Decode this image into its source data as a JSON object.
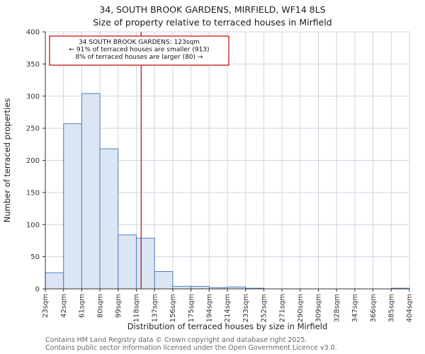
{
  "title": {
    "line1": "34, SOUTH BROOK GARDENS, MIRFIELD, WF14 8LS",
    "line2": "Size of property relative to terraced houses in Mirfield"
  },
  "chart_data": {
    "type": "bar",
    "title": "34, SOUTH BROOK GARDENS, MIRFIELD, WF14 8LS",
    "subtitle": "Size of property relative to terraced houses in Mirfield",
    "xlabel": "Distribution of terraced houses by size in Mirfield",
    "ylabel": "Number of terraced properties",
    "bin_edges_sqm": [
      23,
      42,
      61,
      80,
      99,
      118,
      137,
      156,
      175,
      194,
      214,
      233,
      252,
      271,
      290,
      309,
      328,
      347,
      366,
      385,
      404
    ],
    "x_tick_labels": [
      "23sqm",
      "42sqm",
      "61sqm",
      "80sqm",
      "99sqm",
      "118sqm",
      "137sqm",
      "156sqm",
      "175sqm",
      "194sqm",
      "214sqm",
      "233sqm",
      "252sqm",
      "271sqm",
      "290sqm",
      "309sqm",
      "328sqm",
      "347sqm",
      "366sqm",
      "385sqm",
      "404sqm"
    ],
    "values": [
      25,
      257,
      304,
      218,
      84,
      79,
      27,
      4,
      4,
      2,
      3,
      1,
      0,
      0,
      0,
      0,
      0,
      0,
      0,
      1
    ],
    "ylim": [
      0,
      400
    ],
    "y_ticks": [
      0,
      50,
      100,
      150,
      200,
      250,
      300,
      350,
      400
    ],
    "grid": true,
    "legend": "none",
    "bar_fill": "#dbe5f3",
    "bar_stroke": "#4f81bd",
    "grid_color": "#ccd5e4",
    "marker": {
      "value_sqm": 123,
      "color": "#cc0000",
      "label_lines": [
        "34 SOUTH BROOK GARDENS: 123sqm",
        "← 91% of terraced houses are smaller (913)",
        "8% of terraced houses are larger (80) →"
      ]
    }
  },
  "footer": {
    "line1": "Contains HM Land Registry data © Crown copyright and database right 2025.",
    "line2": "Contains public sector information licensed under the Open Government Licence v3.0."
  }
}
